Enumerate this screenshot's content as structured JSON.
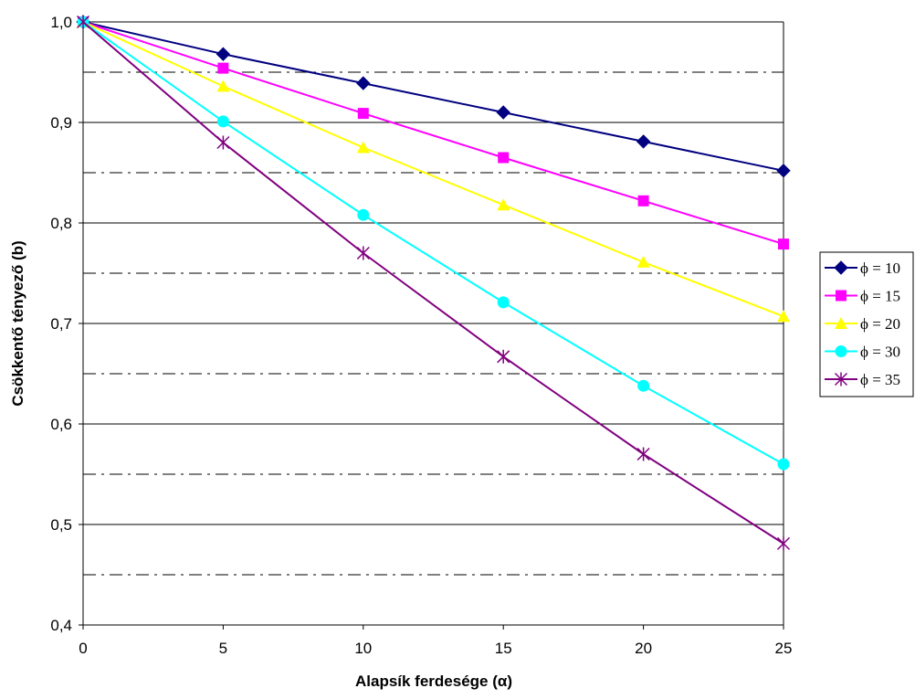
{
  "chart_data": {
    "type": "line",
    "xlabel": "Alapsík ferdesége (α)",
    "ylabel": "Csökkentő tényező (b)",
    "x": [
      0,
      5,
      10,
      15,
      20,
      25
    ],
    "x_tick_labels": [
      "0",
      "5",
      "10",
      "15",
      "20",
      "25"
    ],
    "xlim": [
      0,
      25
    ],
    "ylim": [
      0.4,
      1.0
    ],
    "y_ticks": [
      0.4,
      0.5,
      0.6,
      0.7,
      0.8,
      0.9,
      1.0
    ],
    "y_tick_labels": [
      "0,4",
      "0,5",
      "0,6",
      "0,7",
      "0,8",
      "0,9",
      "1,0"
    ],
    "y_minor_dashed": [
      0.45,
      0.55,
      0.65,
      0.75,
      0.85,
      0.95
    ],
    "grid": true,
    "legend_position": "right",
    "series": [
      {
        "name": "ϕ = 10",
        "color": "#000080",
        "marker": "diamond",
        "values": [
          1.0,
          0.968,
          0.939,
          0.91,
          0.881,
          0.852
        ]
      },
      {
        "name": "ϕ = 15",
        "color": "#FF00FF",
        "marker": "square",
        "values": [
          1.0,
          0.954,
          0.909,
          0.865,
          0.822,
          0.779
        ]
      },
      {
        "name": "ϕ = 20",
        "color": "#FFFF00",
        "marker": "triangle",
        "values": [
          1.0,
          0.936,
          0.875,
          0.818,
          0.761,
          0.707
        ]
      },
      {
        "name": "ϕ = 30",
        "color": "#00FFFF",
        "marker": "circle",
        "values": [
          1.0,
          0.901,
          0.808,
          0.721,
          0.638,
          0.56
        ]
      },
      {
        "name": "ϕ = 35",
        "color": "#800080",
        "marker": "star",
        "values": [
          1.0,
          0.88,
          0.77,
          0.667,
          0.57,
          0.481
        ]
      }
    ]
  }
}
